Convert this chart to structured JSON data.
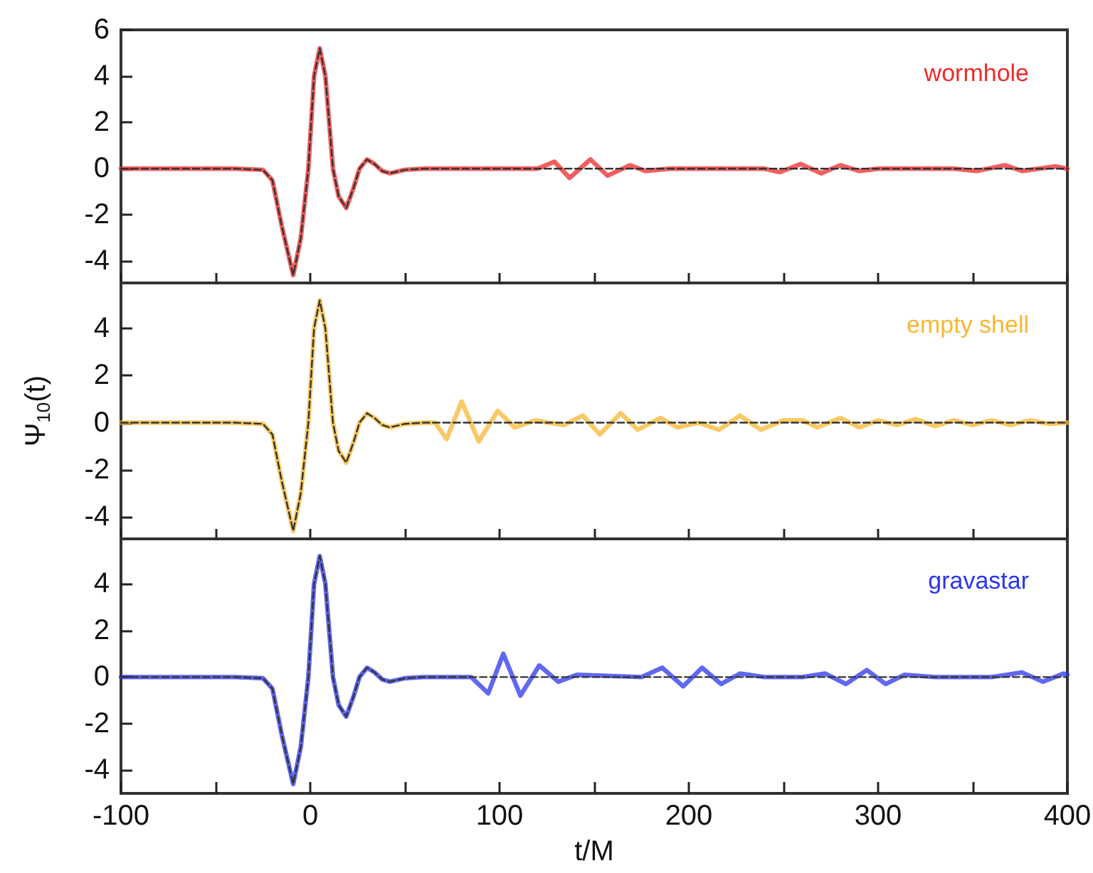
{
  "chart_data": [
    {
      "type": "line",
      "xlim": [
        -100,
        400
      ],
      "ylim": [
        -5,
        6
      ],
      "xticks": [
        -100,
        {
          "value": -50,
          "label": null
        },
        0,
        {
          "value": 50,
          "label": null
        },
        100,
        {
          "value": 150,
          "label": null
        },
        200,
        {
          "value": 250,
          "label": null
        },
        300,
        {
          "value": 350,
          "label": null
        },
        400
      ],
      "yticks": [
        -4,
        -2,
        0,
        2,
        4,
        6
      ],
      "tick_labels": "y",
      "series": [
        {
          "name": "wormhole",
          "color": "#ee2a2a",
          "line_style": "solid",
          "x": [
            -100,
            -40,
            -25,
            -20,
            -15,
            -9,
            -5,
            -1,
            2,
            5,
            8,
            12,
            15,
            19,
            23,
            26,
            30,
            34,
            38,
            42,
            50,
            60,
            100,
            120,
            129,
            137,
            148,
            157,
            169,
            177,
            190,
            230,
            240,
            248,
            259,
            270,
            280,
            290,
            300,
            340,
            352,
            367,
            376,
            385,
            394,
            400
          ],
          "values": [
            0,
            0,
            -0.05,
            -0.5,
            -2.5,
            -4.6,
            -3,
            0,
            4,
            5.2,
            4,
            0,
            -1.2,
            -1.7,
            -0.8,
            0,
            0.4,
            0.2,
            -0.1,
            -0.2,
            -0.05,
            0,
            0,
            0,
            0.3,
            -0.4,
            0.4,
            -0.3,
            0.15,
            -0.1,
            0,
            0,
            0,
            -0.15,
            0.2,
            -0.2,
            0.15,
            -0.1,
            0,
            0,
            -0.1,
            0.15,
            -0.1,
            0,
            0.1,
            0
          ]
        },
        {
          "color": "#333333",
          "line_style": "dashed",
          "x": [
            -100,
            -40,
            -25,
            -20,
            -15,
            -9,
            -5,
            -1,
            2,
            5,
            8,
            12,
            15,
            19,
            23,
            26,
            30,
            34,
            38,
            42,
            50,
            60,
            400
          ],
          "values": [
            0,
            0,
            -0.05,
            -0.5,
            -2.5,
            -4.6,
            -3,
            0,
            4,
            5.2,
            4,
            0,
            -1.2,
            -1.7,
            -0.8,
            0,
            0.4,
            0.2,
            -0.1,
            -0.2,
            -0.05,
            0,
            0
          ]
        }
      ]
    },
    {
      "type": "line",
      "ylabel": "Ψ$_{10}$(t)",
      "xlim": [
        -100,
        400
      ],
      "ylim": [
        -5,
        6
      ],
      "xticks": [
        -100,
        {
          "value": -50,
          "label": null
        },
        0,
        {
          "value": 50,
          "label": null
        },
        100,
        {
          "value": 150,
          "label": null
        },
        200,
        {
          "value": 250,
          "label": null
        },
        300,
        {
          "value": 350,
          "label": null
        },
        400
      ],
      "yticks": [
        -4,
        -2,
        0,
        2,
        4
      ],
      "tick_labels": "y",
      "series": [
        {
          "name": "empty shell",
          "color": "#f7b731",
          "line_style": "solid",
          "x": [
            -100,
            -40,
            -25,
            -20,
            -15,
            -9,
            -5,
            -1,
            2,
            5,
            8,
            12,
            15,
            19,
            23,
            26,
            30,
            34,
            38,
            42,
            50,
            60,
            66,
            72,
            80,
            89,
            99,
            108,
            119,
            126,
            134,
            144,
            153,
            164,
            173,
            185,
            194,
            205,
            216,
            227,
            238,
            250,
            260,
            268,
            280,
            290,
            300,
            310,
            320,
            330,
            340,
            350,
            360,
            370,
            380,
            390,
            400
          ],
          "values": [
            0,
            0,
            -0.05,
            -0.5,
            -2.5,
            -4.6,
            -3,
            0,
            4,
            5.2,
            4,
            0,
            -1.2,
            -1.7,
            -0.8,
            0,
            0.4,
            0.2,
            -0.1,
            -0.2,
            -0.05,
            0,
            0,
            -0.7,
            0.9,
            -0.8,
            0.5,
            -0.2,
            0.1,
            0,
            -0.1,
            0.3,
            -0.5,
            0.4,
            -0.3,
            0.2,
            -0.2,
            0,
            -0.3,
            0.3,
            -0.3,
            0.1,
            0.1,
            -0.2,
            0.2,
            -0.2,
            0.1,
            -0.1,
            0.15,
            -0.15,
            0.1,
            -0.1,
            0.1,
            -0.1,
            0.1,
            -0.05,
            0
          ]
        },
        {
          "color": "#333333",
          "line_style": "dashed",
          "x": [
            -100,
            -40,
            -25,
            -20,
            -15,
            -9,
            -5,
            -1,
            2,
            5,
            8,
            12,
            15,
            19,
            23,
            26,
            30,
            34,
            38,
            42,
            50,
            60,
            400
          ],
          "values": [
            0,
            0,
            -0.05,
            -0.5,
            -2.5,
            -4.6,
            -3,
            0,
            4,
            5.2,
            4,
            0,
            -1.2,
            -1.7,
            -0.8,
            0,
            0.4,
            0.2,
            -0.1,
            -0.2,
            -0.05,
            0,
            0
          ]
        }
      ]
    },
    {
      "type": "line",
      "xlabel": "t/M",
      "xlim": [
        -100,
        400
      ],
      "ylim": [
        -5,
        6
      ],
      "xticks": [
        -100,
        {
          "value": -50,
          "label": null
        },
        0,
        {
          "value": 50,
          "label": null
        },
        100,
        {
          "value": 150,
          "label": null
        },
        200,
        {
          "value": 250,
          "label": null
        },
        300,
        {
          "value": 350,
          "label": null
        },
        400
      ],
      "yticks": [
        -4,
        -2,
        0,
        2,
        4
      ],
      "series": [
        {
          "name": "gravastar",
          "color": "#2b35ee",
          "line_style": "solid",
          "x": [
            -100,
            -40,
            -25,
            -20,
            -15,
            -9,
            -5,
            -1,
            2,
            5,
            8,
            12,
            15,
            19,
            23,
            26,
            30,
            34,
            38,
            42,
            50,
            60,
            85,
            94,
            102,
            111,
            121,
            131,
            141,
            175,
            186,
            197,
            207,
            217,
            227,
            240,
            260,
            272,
            283,
            294,
            304,
            314,
            330,
            360,
            376,
            387,
            398,
            400
          ],
          "values": [
            0,
            0,
            -0.05,
            -0.5,
            -2.5,
            -4.6,
            -3,
            0,
            4,
            5.2,
            4,
            0,
            -1.2,
            -1.7,
            -0.8,
            0,
            0.4,
            0.2,
            -0.1,
            -0.2,
            -0.05,
            0,
            0,
            -0.7,
            1,
            -0.8,
            0.5,
            -0.2,
            0.1,
            0,
            0.4,
            -0.4,
            0.4,
            -0.3,
            0.15,
            0,
            0,
            0.15,
            -0.3,
            0.3,
            -0.3,
            0.1,
            0,
            0,
            0.2,
            -0.2,
            0.15,
            0.1
          ]
        },
        {
          "color": "#333333",
          "line_style": "dashed",
          "x": [
            -100,
            -40,
            -25,
            -20,
            -15,
            -9,
            -5,
            -1,
            2,
            5,
            8,
            12,
            15,
            19,
            23,
            26,
            30,
            34,
            38,
            42,
            50,
            60,
            400
          ],
          "values": [
            0,
            0,
            -0.05,
            -0.5,
            -2.5,
            -4.6,
            -3,
            0,
            4,
            5.2,
            4,
            0,
            -1.2,
            -1.7,
            -0.8,
            0,
            0.4,
            0.2,
            -0.1,
            -0.2,
            -0.05,
            0,
            0
          ]
        }
      ]
    }
  ]
}
